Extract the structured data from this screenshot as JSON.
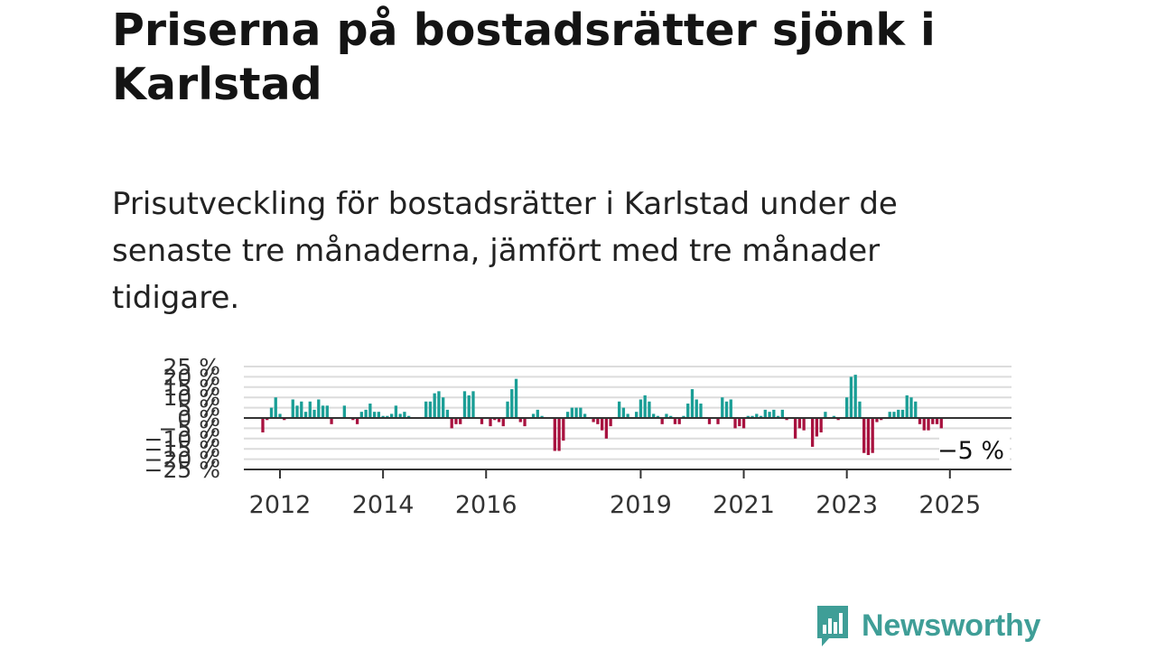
{
  "header": {
    "title": "Priserna på bostadsrätter sjönk i Karlstad",
    "subtitle": "Prisutveckling för bostadsrätter i Karlstad under de senaste tre månaderna, jämfört med tre månader tidigare."
  },
  "brand": {
    "name": "Newsworthy",
    "logo_icon": "bar-chart-speech-bubble-icon"
  },
  "colors": {
    "positive": "#1a9e96",
    "negative": "#a8123f",
    "brand": "#3f9e97"
  },
  "chart_data": {
    "type": "bar",
    "unit": "%",
    "x_start": "2011-09",
    "x_step": "month",
    "ylim": [
      -25,
      25
    ],
    "y_ticks": [
      {
        "value": 25,
        "label": "25 %"
      },
      {
        "value": 20,
        "label": "20 %"
      },
      {
        "value": 15,
        "label": "15 %"
      },
      {
        "value": 10,
        "label": "10 %"
      },
      {
        "value": 5,
        "label": "5 %"
      },
      {
        "value": 0,
        "label": "0 %"
      },
      {
        "value": -5,
        "label": "−5 %"
      },
      {
        "value": -10,
        "label": "−10 %"
      },
      {
        "value": -15,
        "label": "−15 %"
      },
      {
        "value": -20,
        "label": "−20 %"
      },
      {
        "value": -25,
        "label": "−25 %"
      }
    ],
    "x_ticks": [
      {
        "date": "2012-01",
        "label": "2012"
      },
      {
        "date": "2014-01",
        "label": "2014"
      },
      {
        "date": "2016-01",
        "label": "2016"
      },
      {
        "date": "2019-01",
        "label": "2019"
      },
      {
        "date": "2021-01",
        "label": "2021"
      },
      {
        "date": "2023-01",
        "label": "2023"
      },
      {
        "date": "2025-01",
        "label": "2025"
      }
    ],
    "grid": true,
    "highlight_label": "−5 %",
    "values": [
      -7,
      -1,
      5,
      10,
      2,
      -1,
      0,
      9,
      6,
      8,
      3,
      8,
      4,
      9,
      6,
      6,
      -3,
      0,
      0,
      6,
      0,
      -1,
      -3,
      3,
      4,
      7,
      3,
      3,
      1,
      1,
      2,
      6,
      2,
      3,
      1,
      0,
      0,
      0,
      8,
      8,
      12,
      13,
      10,
      4,
      -5,
      -3,
      -3,
      13,
      11,
      13,
      0,
      -3,
      0,
      -4,
      -1,
      -2,
      -4,
      8,
      14,
      19,
      -2,
      -4,
      0,
      2,
      4,
      1,
      0,
      0,
      -16,
      -16,
      -11,
      3,
      5,
      5,
      5,
      2,
      0,
      -2,
      -3,
      -6,
      -10,
      -4,
      0,
      8,
      5,
      2,
      0,
      3,
      9,
      11,
      8,
      2,
      1,
      -3,
      2,
      1,
      -3,
      -3,
      1,
      7,
      14,
      9,
      7,
      0,
      -3,
      0,
      -3,
      10,
      8,
      9,
      -5,
      -4,
      -5,
      1,
      1,
      2,
      1,
      4,
      3,
      4,
      1,
      4,
      -1,
      0,
      -10,
      -5,
      -6,
      0,
      -14,
      -9,
      -7,
      3,
      0,
      1,
      -1,
      0,
      10,
      20,
      21,
      8,
      -17,
      -18,
      -17,
      -2,
      -1,
      0,
      3,
      3,
      4,
      4,
      11,
      10,
      8,
      -3,
      -6,
      -6,
      -3,
      -3,
      -5
    ]
  }
}
